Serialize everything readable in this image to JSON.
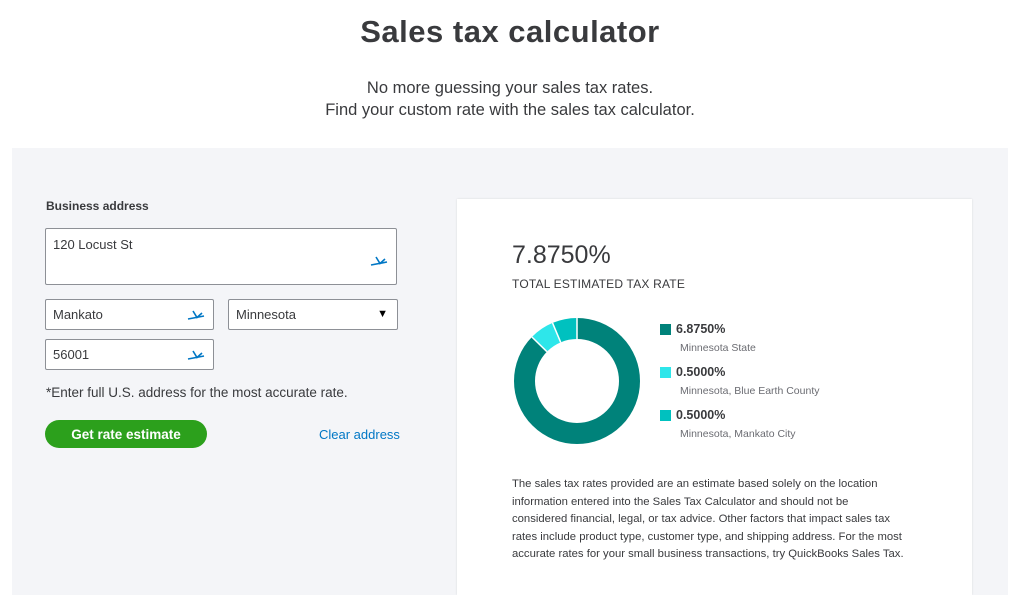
{
  "header": {
    "title": "Sales tax calculator",
    "subtitle_line1": "No more guessing your sales tax rates.",
    "subtitle_line2": "Find your custom rate with the sales tax calculator."
  },
  "form": {
    "label": "Business address",
    "street": "120 Locust St",
    "city": "Mankato",
    "state": "Minnesota",
    "zip": "56001",
    "hint": "*Enter full U.S. address for the most accurate rate.",
    "submit_label": "Get rate estimate",
    "clear_label": "Clear address"
  },
  "result": {
    "total_rate": "7.8750%",
    "total_label": "TOTAL ESTIMATED TAX RATE",
    "breakdown": [
      {
        "value": "6.8750%",
        "name": "Minnesota State",
        "color": "#00827a",
        "fraction": 0.873
      },
      {
        "value": "0.5000%",
        "name": "Minnesota, Blue Earth County",
        "color": "#2ee6ea",
        "fraction": 0.0635
      },
      {
        "value": "0.5000%",
        "name": "Minnesota, Mankato City",
        "color": "#00c1bf",
        "fraction": 0.0635
      }
    ],
    "disclaimer": "The sales tax rates provided are an estimate based solely on the location information entered into the Sales Tax Calculator and should not be considered financial, legal, or tax advice. Other factors that impact sales tax rates include product type, customer type, and shipping address. For the most accurate rates for your small business transactions, try QuickBooks Sales Tax."
  }
}
